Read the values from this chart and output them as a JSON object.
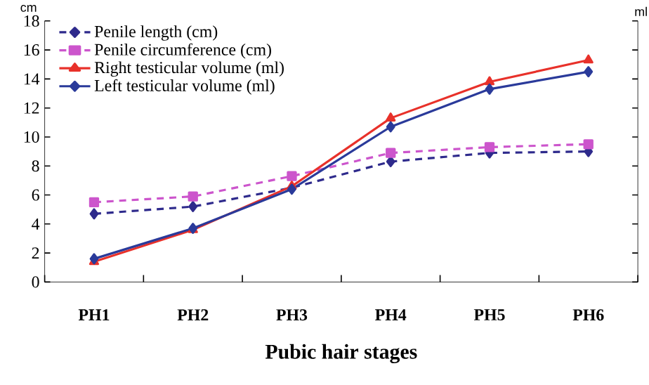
{
  "chart_data": {
    "type": "line",
    "xlabel": "Pubic hair stages",
    "ylabel": "cm",
    "y2label": "ml",
    "categories": [
      "PH1",
      "PH2",
      "PH3",
      "PH4",
      "PH5",
      "PH6"
    ],
    "ylim": [
      0,
      18
    ],
    "yticks": [
      0,
      2,
      4,
      6,
      8,
      10,
      12,
      14,
      16,
      18
    ],
    "tick_labels": "xy",
    "grid": false,
    "legend": "top left",
    "series": [
      {
        "name": "Penile length (cm)",
        "color": "#2e2a8c",
        "marker": "diamond",
        "line_style": "dashed",
        "values": [
          4.7,
          5.2,
          6.5,
          8.3,
          8.9,
          9.0
        ]
      },
      {
        "name": "Penile circumference (cm)",
        "color": "#cc55cc",
        "marker": "square",
        "line_style": "dashed",
        "values": [
          5.5,
          5.9,
          7.3,
          8.9,
          9.3,
          9.5
        ]
      },
      {
        "name": "Right testicular volume (ml)",
        "color": "#e8312a",
        "marker": "triangle",
        "line_style": "solid",
        "values": [
          1.4,
          3.6,
          6.6,
          11.3,
          13.8,
          15.3
        ]
      },
      {
        "name": "Left testicular volume (ml)",
        "color": "#2a3a9a",
        "marker": "diamond",
        "line_style": "solid",
        "values": [
          1.6,
          3.7,
          6.4,
          10.7,
          13.3,
          14.5
        ]
      }
    ]
  }
}
